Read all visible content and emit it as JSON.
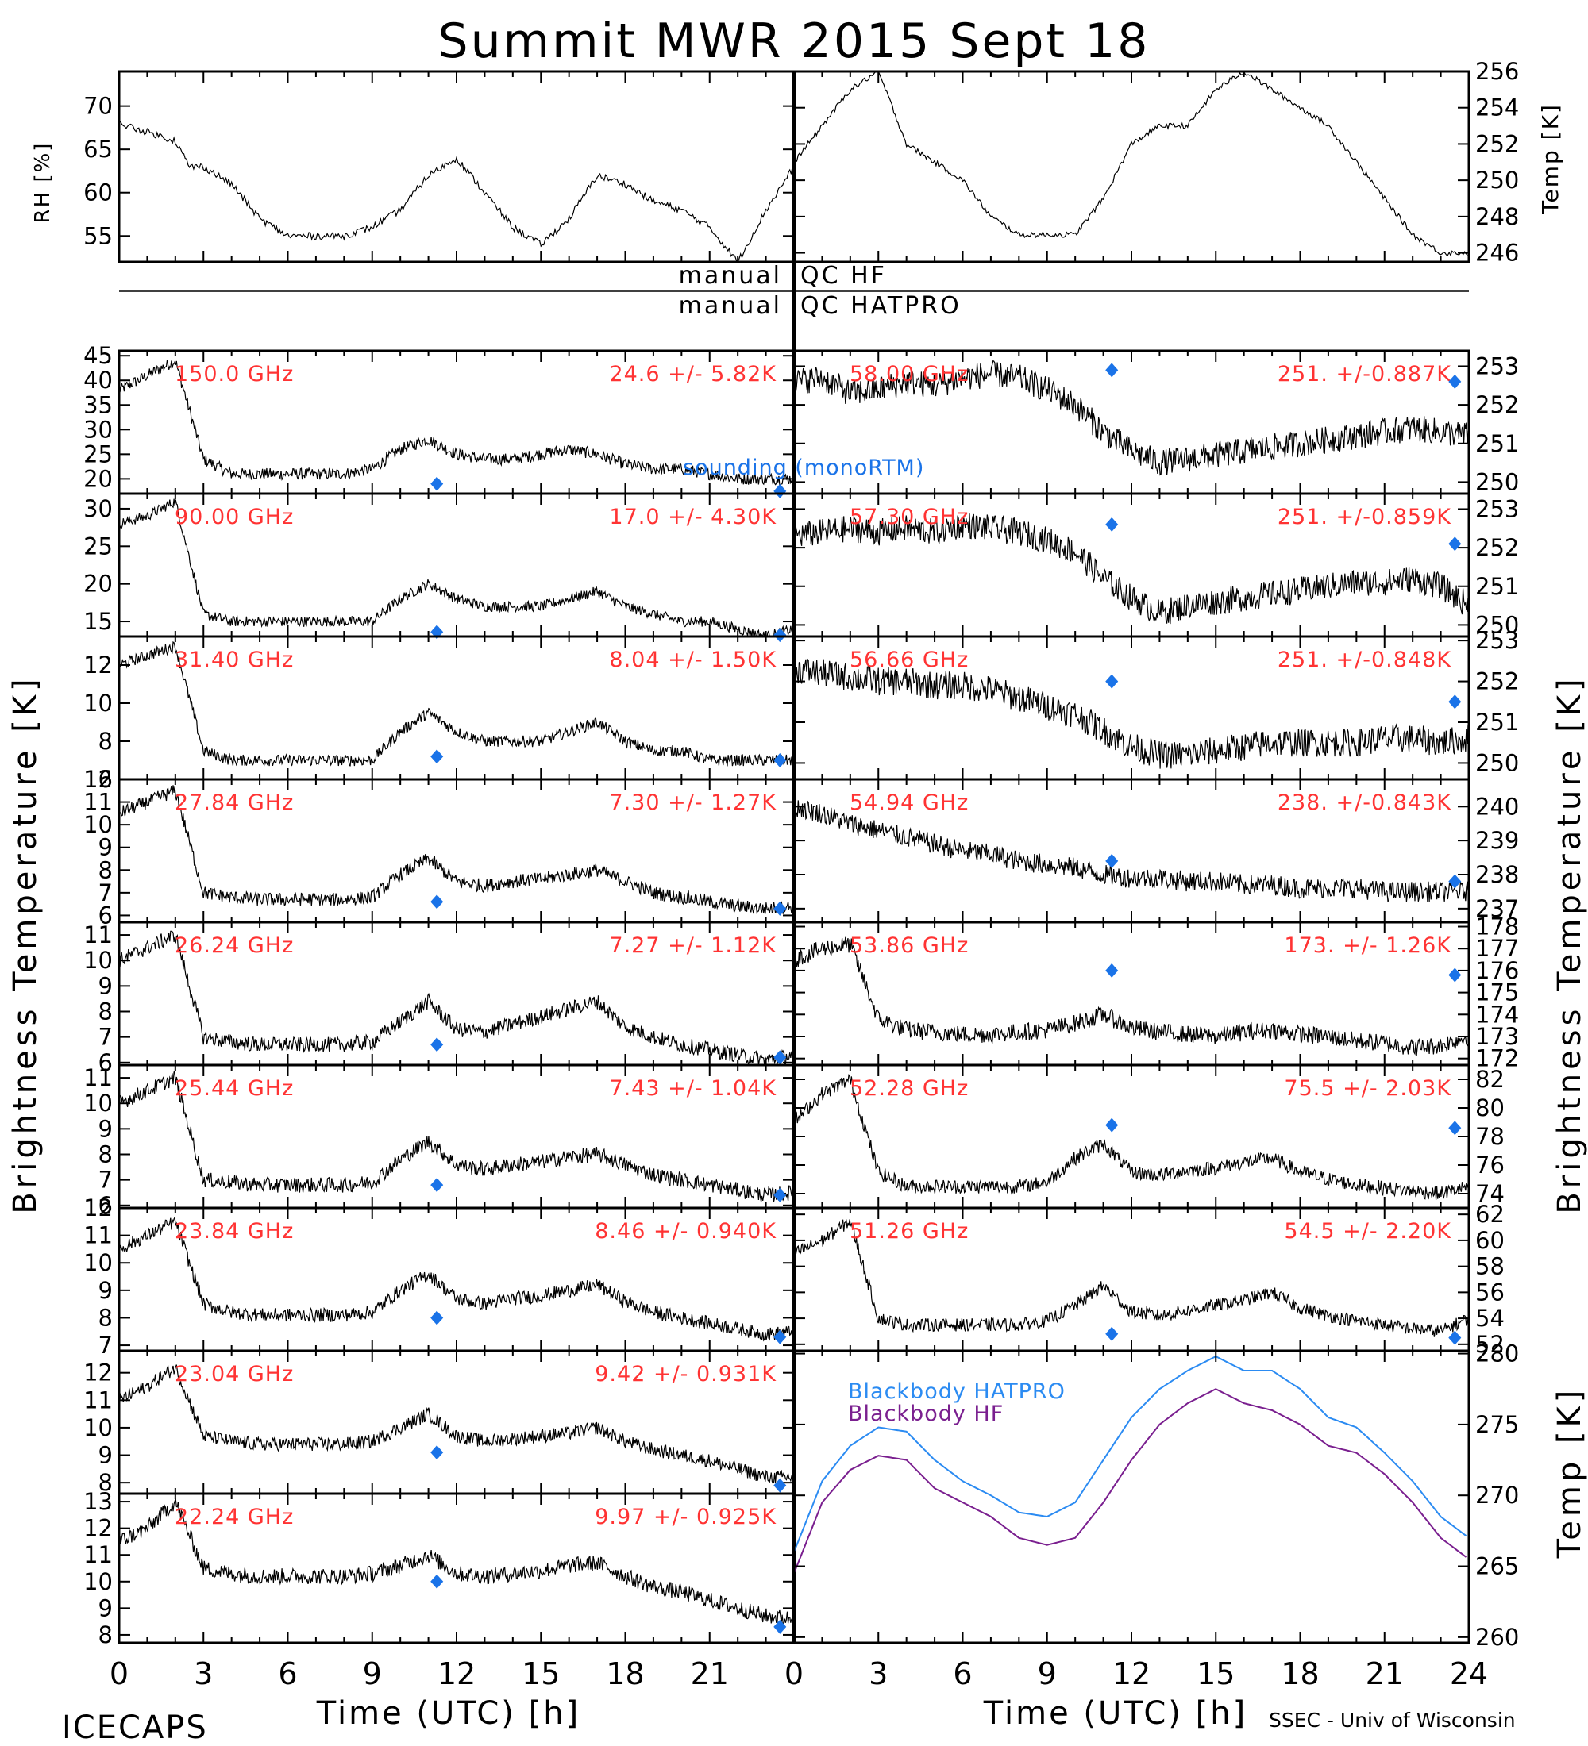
{
  "title": "Summit MWR 2015 Sept 18",
  "footer": {
    "left": "ICECAPS",
    "left_xlabel": "Time (UTC) [h]",
    "right_xlabel": "Time (UTC) [h]",
    "credit": "SSEC - Univ of Wisconsin"
  },
  "axis_titles": {
    "rh": "RH [%]",
    "temp": "Temp [K]",
    "bt_left": "Brightness Temperature [K]",
    "bt_right": "Brightness Temperature [K]",
    "bb_temp": "Temp [K]"
  },
  "qc": {
    "left1": "manual",
    "right1": "QC HF",
    "left2": "manual",
    "right2": "QC HATPRO"
  },
  "colors": {
    "trace": "#000000",
    "label": "#ff3333",
    "sounding": "#1a73e8",
    "bb_hatpro": "#2b8bf2",
    "bb_hf": "#7a1f8f"
  },
  "x_ticks": [
    "0",
    "3",
    "6",
    "9",
    "12",
    "15",
    "18",
    "21",
    "0",
    "3",
    "6",
    "9",
    "12",
    "15",
    "18",
    "21",
    "24"
  ],
  "chart_data": [
    {
      "type": "line",
      "id": "rh",
      "ylim": [
        52,
        74
      ],
      "yticks": [
        "55",
        "60",
        "65",
        "70"
      ],
      "ytick_values": [
        55,
        60,
        65,
        70
      ],
      "x": [
        0,
        1,
        2,
        2.5,
        3,
        4,
        5,
        6,
        7,
        8,
        9,
        10,
        11,
        12,
        13,
        14,
        15,
        16,
        17,
        18,
        19,
        20,
        21,
        22,
        23,
        24
      ],
      "y": [
        68,
        67,
        66,
        63,
        63,
        61,
        57,
        55,
        55,
        55,
        56,
        58,
        62,
        64,
        60,
        56,
        54,
        57,
        62,
        61,
        59,
        58,
        56,
        52,
        58,
        63
      ]
    },
    {
      "type": "line",
      "id": "temp",
      "ylim": [
        245.5,
        256
      ],
      "yticks": [
        "246",
        "248",
        "250",
        "252",
        "254",
        "256"
      ],
      "ytick_values": [
        246,
        248,
        250,
        252,
        254,
        256
      ],
      "x": [
        0,
        1,
        2,
        3,
        4,
        5,
        6,
        7,
        8,
        9,
        10,
        11,
        12,
        13,
        14,
        15,
        16,
        17,
        18,
        19,
        20,
        21,
        22,
        23,
        24
      ],
      "y": [
        251,
        253,
        255,
        256,
        252,
        251,
        250,
        248,
        247,
        247,
        247,
        249,
        252,
        253,
        253,
        255,
        256,
        255,
        254,
        253,
        251,
        249,
        247,
        246,
        246
      ]
    },
    {
      "type": "line",
      "id": "l150",
      "label": "150.0 GHz",
      "stats": "24.6 +/- 5.82K",
      "ylim": [
        17,
        46
      ],
      "yticks": [
        "20",
        "25",
        "30",
        "35",
        "40",
        "45"
      ],
      "ytick_values": [
        20,
        25,
        30,
        35,
        40,
        45
      ],
      "y_profile": [
        38,
        41,
        44,
        24,
        21,
        21,
        21,
        21,
        21,
        22,
        26,
        28,
        25,
        24,
        24,
        25,
        26,
        25,
        23,
        22,
        22,
        21,
        20,
        20,
        20
      ],
      "sounding": [
        [
          11.3,
          19
        ],
        [
          23.5,
          17.5
        ]
      ],
      "noise": 1.2
    },
    {
      "type": "line",
      "id": "l90",
      "label": "90.00 GHz",
      "stats": "17.0 +/- 4.30K",
      "ylim": [
        13,
        32
      ],
      "yticks": [
        "15",
        "20",
        "25",
        "30"
      ],
      "ytick_values": [
        15,
        20,
        25,
        30
      ],
      "y_profile": [
        28,
        29,
        31,
        16,
        15,
        15,
        15,
        15,
        15,
        15,
        18,
        20,
        18,
        17,
        17,
        17,
        18,
        19,
        17,
        16,
        15,
        15,
        14,
        13,
        14
      ],
      "sounding": [
        [
          11.3,
          13.6
        ],
        [
          23.5,
          13.2
        ]
      ],
      "noise": 0.7
    },
    {
      "type": "line",
      "id": "l31",
      "label": "31.40 GHz",
      "stats": "8.04 +/- 1.50K",
      "ylim": [
        6,
        13.5
      ],
      "yticks": [
        "6",
        "8",
        "10",
        "12"
      ],
      "ytick_values": [
        6,
        8,
        10,
        12
      ],
      "y_profile": [
        12,
        12.5,
        13,
        7.5,
        7,
        7,
        7,
        7,
        7,
        7,
        8.5,
        9.5,
        8.5,
        8,
        8,
        8,
        8.5,
        9,
        8,
        7.5,
        7.5,
        7,
        7,
        7,
        7
      ],
      "sounding": [
        [
          11.3,
          7.2
        ],
        [
          23.5,
          7
        ]
      ],
      "noise": 0.3
    },
    {
      "type": "line",
      "id": "l27",
      "label": "27.84 GHz",
      "stats": "7.30 +/- 1.27K",
      "ylim": [
        5.7,
        12
      ],
      "yticks": [
        "6",
        "7",
        "8",
        "9",
        "10",
        "11",
        "12"
      ],
      "ytick_values": [
        6,
        7,
        8,
        9,
        10,
        11,
        12
      ],
      "y_profile": [
        10.5,
        11,
        11.5,
        7,
        6.8,
        6.7,
        6.7,
        6.7,
        6.7,
        6.8,
        7.8,
        8.5,
        7.5,
        7.3,
        7.5,
        7.6,
        7.8,
        8,
        7.5,
        7,
        6.8,
        6.6,
        6.4,
        6.3,
        6.4
      ],
      "sounding": [
        [
          11.3,
          6.6
        ],
        [
          23.5,
          6.3
        ]
      ],
      "noise": 0.3
    },
    {
      "type": "line",
      "id": "l26",
      "label": "26.24 GHz",
      "stats": "7.27 +/- 1.12K",
      "ylim": [
        5.9,
        11.5
      ],
      "yticks": [
        "6",
        "7",
        "8",
        "9",
        "10",
        "11"
      ],
      "ytick_values": [
        6,
        7,
        8,
        9,
        10,
        11
      ],
      "y_profile": [
        10,
        10.5,
        11,
        7,
        6.8,
        6.7,
        6.7,
        6.7,
        6.7,
        6.8,
        7.6,
        8.4,
        7.3,
        7.2,
        7.5,
        7.8,
        8.1,
        8.4,
        7.4,
        7,
        6.7,
        6.5,
        6.3,
        6.1,
        6.3
      ],
      "sounding": [
        [
          11.3,
          6.7
        ],
        [
          23.5,
          6.2
        ]
      ],
      "noise": 0.3
    },
    {
      "type": "line",
      "id": "l25",
      "label": "25.44 GHz",
      "stats": "7.43 +/- 1.04K",
      "ylim": [
        5.9,
        11.5
      ],
      "yticks": [
        "6",
        "7",
        "8",
        "9",
        "10",
        "11"
      ],
      "ytick_values": [
        6,
        7,
        8,
        9,
        10,
        11
      ],
      "y_profile": [
        10,
        10.5,
        11,
        7,
        6.9,
        6.8,
        6.8,
        6.8,
        6.8,
        6.9,
        7.8,
        8.5,
        7.6,
        7.4,
        7.6,
        7.7,
        7.9,
        8,
        7.6,
        7.2,
        7,
        6.8,
        6.6,
        6.4,
        6.5
      ],
      "sounding": [
        [
          11.3,
          6.8
        ],
        [
          23.5,
          6.4
        ]
      ],
      "noise": 0.3
    },
    {
      "type": "line",
      "id": "l23_8",
      "label": "23.84 GHz",
      "stats": "8.46 +/- 0.940K",
      "ylim": [
        6.8,
        12
      ],
      "yticks": [
        "7",
        "8",
        "9",
        "10",
        "11",
        "12"
      ],
      "ytick_values": [
        7,
        8,
        9,
        10,
        11,
        12
      ],
      "y_profile": [
        10.5,
        11,
        11.5,
        8.5,
        8.2,
        8.1,
        8.1,
        8.1,
        8.1,
        8.2,
        9,
        9.6,
        8.7,
        8.5,
        8.7,
        8.8,
        9,
        9.2,
        8.6,
        8.2,
        8,
        7.8,
        7.6,
        7.4,
        7.5
      ],
      "sounding": [
        [
          11.3,
          8
        ],
        [
          23.5,
          7.3
        ]
      ],
      "noise": 0.25
    },
    {
      "type": "line",
      "id": "l23_0",
      "label": "23.04 GHz",
      "stats": "9.42 +/- 0.931K",
      "ylim": [
        7.6,
        12.8
      ],
      "yticks": [
        "8",
        "9",
        "10",
        "11",
        "12"
      ],
      "ytick_values": [
        8,
        9,
        10,
        11,
        12
      ],
      "y_profile": [
        11,
        11.5,
        12.2,
        9.7,
        9.5,
        9.4,
        9.4,
        9.4,
        9.4,
        9.5,
        10,
        10.5,
        9.7,
        9.5,
        9.6,
        9.7,
        9.8,
        10,
        9.5,
        9.2,
        9,
        8.8,
        8.5,
        8.2,
        8.2
      ],
      "sounding": [
        [
          11.3,
          9.1
        ],
        [
          23.5,
          7.9
        ]
      ],
      "noise": 0.25
    },
    {
      "type": "line",
      "id": "l22",
      "label": "22.24 GHz",
      "stats": "9.97 +/- 0.925K",
      "ylim": [
        7.7,
        13.3
      ],
      "yticks": [
        "8",
        "9",
        "10",
        "11",
        "12",
        "13"
      ],
      "ytick_values": [
        8,
        9,
        10,
        11,
        12,
        13
      ],
      "y_profile": [
        11.5,
        12,
        13,
        10.5,
        10.3,
        10.2,
        10.2,
        10.2,
        10.2,
        10.3,
        10.6,
        11,
        10.3,
        10.2,
        10.3,
        10.4,
        10.6,
        10.7,
        10.2,
        9.8,
        9.6,
        9.3,
        9,
        8.7,
        8.6
      ],
      "sounding": [
        [
          11.3,
          10
        ],
        [
          23.5,
          8.3
        ]
      ],
      "noise": 0.3
    },
    {
      "type": "line",
      "id": "r58",
      "label": "58.00 GHz",
      "stats": "251. +/-0.887K",
      "ylim": [
        249.7,
        253.4
      ],
      "yticks": [
        "250",
        "251",
        "252",
        "253"
      ],
      "ytick_values": [
        250,
        251,
        252,
        253
      ],
      "y_profile": [
        252.6,
        252.7,
        252.3,
        252.4,
        252.6,
        252.5,
        252.7,
        252.8,
        252.7,
        252.4,
        252,
        251.3,
        250.8,
        250.5,
        250.6,
        250.7,
        250.8,
        250.9,
        251,
        251.1,
        251.2,
        251.3,
        251.4,
        251.3,
        251.2
      ],
      "sounding": [
        [
          11.3,
          252.9
        ],
        [
          23.5,
          252.6
        ]
      ],
      "noise": 0.35
    },
    {
      "type": "line",
      "id": "r57",
      "label": "57.30 GHz",
      "stats": "251. +/-0.859K",
      "ylim": [
        249.7,
        253.4
      ],
      "yticks": [
        "250",
        "251",
        "252",
        "253"
      ],
      "ytick_values": [
        250,
        251,
        252,
        253
      ],
      "y_profile": [
        252.3,
        252.4,
        252.5,
        252.4,
        252.5,
        252.4,
        252.6,
        252.5,
        252.4,
        252.2,
        251.9,
        251.2,
        250.7,
        250.3,
        250.5,
        250.6,
        250.7,
        250.8,
        250.9,
        251,
        251.1,
        251.1,
        251.2,
        251,
        250.5
      ],
      "sounding": [
        [
          11.3,
          252.6
        ],
        [
          23.5,
          252.1
        ]
      ],
      "noise": 0.35
    },
    {
      "type": "line",
      "id": "r56",
      "label": "56.66 GHz",
      "stats": "251. +/-0.848K",
      "ylim": [
        249.6,
        253.1
      ],
      "yticks": [
        "250",
        "251",
        "252",
        "253"
      ],
      "ytick_values": [
        250,
        251,
        252,
        253
      ],
      "y_profile": [
        252.3,
        252.2,
        252.1,
        252,
        252,
        251.9,
        251.9,
        251.8,
        251.6,
        251.4,
        251.2,
        250.8,
        250.4,
        250.2,
        250.2,
        250.3,
        250.4,
        250.5,
        250.5,
        250.5,
        250.5,
        250.6,
        250.6,
        250.5,
        250.6
      ],
      "sounding": [
        [
          11.3,
          252
        ],
        [
          23.5,
          251.5
        ]
      ],
      "noise": 0.35
    },
    {
      "type": "line",
      "id": "r54",
      "label": "54.94 GHz",
      "stats": "238. +/-0.843K",
      "ylim": [
        236.6,
        240.8
      ],
      "yticks": [
        "237",
        "238",
        "239",
        "240"
      ],
      "ytick_values": [
        237,
        238,
        239,
        240
      ],
      "y_profile": [
        240,
        239.8,
        239.5,
        239.3,
        239.1,
        238.9,
        238.7,
        238.6,
        238.4,
        238.3,
        238.2,
        238,
        237.9,
        237.9,
        237.8,
        237.8,
        237.7,
        237.7,
        237.6,
        237.6,
        237.6,
        237.5,
        237.5,
        237.5,
        237.5
      ],
      "sounding": [
        [
          11.3,
          238.4
        ],
        [
          23.5,
          237.8
        ]
      ],
      "noise": 0.3
    },
    {
      "type": "line",
      "id": "r53",
      "label": "53.86 GHz",
      "stats": "173. +/- 1.26K",
      "ylim": [
        171.7,
        178.2
      ],
      "yticks": [
        "172",
        "173",
        "174",
        "175",
        "176",
        "177",
        "178"
      ],
      "ytick_values": [
        172,
        173,
        174,
        175,
        176,
        177,
        178
      ],
      "y_profile": [
        176.5,
        177,
        177.2,
        173.8,
        173.3,
        173.2,
        173.1,
        173.1,
        173.2,
        173.3,
        173.6,
        174,
        173.4,
        173.2,
        173.1,
        173,
        173.2,
        173.3,
        173.1,
        173,
        172.8,
        172.7,
        172.5,
        172.6,
        173
      ],
      "sounding": [
        [
          11.3,
          176
        ],
        [
          23.5,
          175.8
        ]
      ],
      "noise": 0.4
    },
    {
      "type": "line",
      "id": "r52",
      "label": "52.28 GHz",
      "stats": "75.5 +/- 2.03K",
      "ylim": [
        73,
        83
      ],
      "yticks": [
        "74",
        "76",
        "78",
        "80",
        "82"
      ],
      "ytick_values": [
        74,
        76,
        78,
        80,
        82
      ],
      "y_profile": [
        79,
        81,
        82,
        75.5,
        74.5,
        74.5,
        74.5,
        74.5,
        74.5,
        74.8,
        76.5,
        77.5,
        75.5,
        75.3,
        75.6,
        75.8,
        76.2,
        76.5,
        75.5,
        75,
        74.6,
        74.4,
        74.2,
        74,
        74.5
      ],
      "sounding": [
        [
          11.3,
          78.8
        ],
        [
          23.5,
          78.6
        ]
      ],
      "noise": 0.5
    },
    {
      "type": "line",
      "id": "r51",
      "label": "51.26 GHz",
      "stats": "54.5 +/- 2.20K",
      "ylim": [
        51.5,
        62.5
      ],
      "yticks": [
        "52",
        "54",
        "56",
        "58",
        "60",
        "62"
      ],
      "ytick_values": [
        52,
        54,
        56,
        58,
        60,
        62
      ],
      "y_profile": [
        59,
        60,
        61.5,
        54,
        53.5,
        53.5,
        53.5,
        53.5,
        53.5,
        53.8,
        55,
        56.5,
        54.5,
        54.2,
        54.6,
        55,
        55.4,
        56,
        54.8,
        54.2,
        53.8,
        53.5,
        53.2,
        53,
        54
      ],
      "sounding": [
        [
          11.3,
          52.8
        ],
        [
          23.5,
          52.5
        ]
      ],
      "noise": 0.5
    },
    {
      "type": "line",
      "id": "bb",
      "ylim": [
        259.6,
        280.2
      ],
      "yticks": [
        "260",
        "265",
        "270",
        "275",
        "280"
      ],
      "ytick_values": [
        260,
        265,
        270,
        275,
        280
      ],
      "x": [
        0,
        1,
        2,
        3,
        4,
        5,
        6,
        7,
        8,
        9,
        10,
        11,
        12,
        13,
        14,
        15,
        16,
        17,
        18,
        19,
        20,
        21,
        22,
        23,
        24
      ],
      "series": [
        {
          "name": "Blackbody HATPRO",
          "values": [
            266,
            271,
            273.5,
            274.8,
            274.5,
            272.5,
            271,
            270,
            268.8,
            268.5,
            269.5,
            272.5,
            275.5,
            277.5,
            278.8,
            279.8,
            278.8,
            278.8,
            277.5,
            275.5,
            274.8,
            273,
            271,
            268.5,
            267
          ]
        },
        {
          "name": "Blackbody HF",
          "values": [
            264.5,
            269.5,
            271.8,
            272.8,
            272.5,
            270.5,
            269.5,
            268.5,
            267,
            266.5,
            267,
            269.5,
            272.5,
            275,
            276.5,
            277.5,
            276.5,
            276,
            275,
            273.5,
            273,
            271.5,
            269.5,
            267,
            265.5
          ]
        }
      ]
    }
  ]
}
